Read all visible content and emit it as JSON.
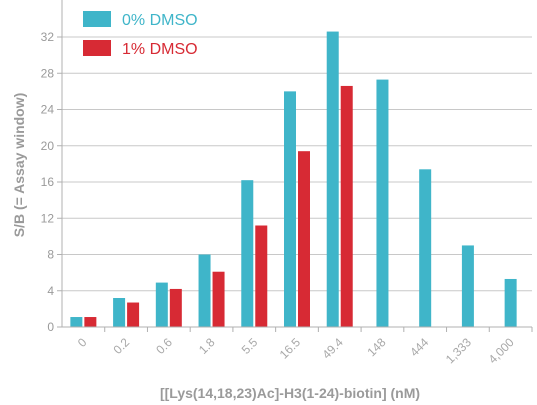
{
  "chart_data": {
    "type": "bar",
    "ylabel": "S/B (= Assay window)",
    "xlabel": "[[Lys(14,18,23)Ac]-H3(1-24)-biotin] (nM)",
    "categories": [
      "0",
      "0.2",
      "0.6",
      "1.8",
      "5.5",
      "16.5",
      "49.4",
      "148",
      "444",
      "1,333",
      "4,000"
    ],
    "yticks": [
      "0",
      "4",
      "8",
      "12",
      "16",
      "20",
      "24",
      "28",
      "32"
    ],
    "ylim": [
      0,
      32
    ],
    "grid": true,
    "legend_position": "top-left",
    "series": [
      {
        "name": "0% DMSO",
        "color": "#3fb5c9",
        "values": [
          1.1,
          3.2,
          4.9,
          8.0,
          16.2,
          26.0,
          32.6,
          27.3,
          17.4,
          9.0,
          5.3
        ]
      },
      {
        "name": "1% DMSO",
        "color": "#d72a34",
        "values": [
          1.1,
          2.7,
          4.2,
          6.1,
          11.2,
          19.4,
          26.6,
          null,
          null,
          null,
          null
        ]
      }
    ]
  }
}
